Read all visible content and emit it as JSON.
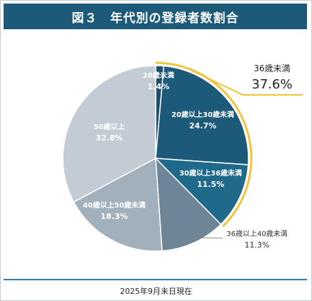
{
  "header": {
    "title": "図３　年代別の登録者数割合"
  },
  "footer": {
    "note": "2025年9月末日現在"
  },
  "callout": {
    "label": "36歳未満",
    "value": "37.6%"
  },
  "colors": {
    "header_bg": "#1d5a7a",
    "highlight_ring": "#f0c43b",
    "footer_line": "#2f7bb0"
  },
  "chart_data": {
    "type": "pie",
    "title": "図３　年代別の登録者数割合",
    "start_angle_deg": 0,
    "direction": "clockwise",
    "slices": [
      {
        "label": "20歳未満",
        "value": 1.4,
        "value_label": "1.4%",
        "color": "#1d4f6e",
        "label_color": "#ffffff"
      },
      {
        "label": "20歳以上30歳未満",
        "value": 24.7,
        "value_label": "24.7%",
        "color": "#1d5a7a",
        "label_color": "#ffffff"
      },
      {
        "label": "30歳以上36歳未満",
        "value": 11.5,
        "value_label": "11.5%",
        "color": "#1f6a8a",
        "label_color": "#ffffff"
      },
      {
        "label": "36歳以上40歳未満",
        "value": 11.3,
        "value_label": "11.3%",
        "color": "#6e8598",
        "label_color": "#333333"
      },
      {
        "label": "40歳以上50歳未満",
        "value": 18.3,
        "value_label": "18.3%",
        "color": "#a2b0bc",
        "label_color": "#ffffff"
      },
      {
        "label": "50歳以上",
        "value": 32.8,
        "value_label": "32.8%",
        "color": "#c3ccd5",
        "label_color": "#ffffff"
      }
    ],
    "highlight_group": {
      "label": "36歳未満",
      "value": 37.6,
      "slices": [
        0,
        1,
        2
      ]
    }
  }
}
